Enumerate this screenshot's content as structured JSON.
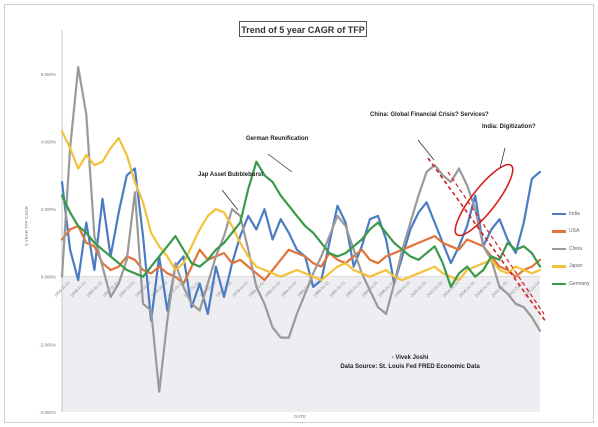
{
  "chart_data": {
    "type": "line",
    "title": "Trend of 5 year CAGR of TFP",
    "ylabel": "5 YEAR TFP CAGR",
    "xlabel": "DATE",
    "ylim": [
      -4,
      7
    ],
    "yticks": [
      "6.000%",
      "4.000%",
      "2.000%",
      "0.000%",
      "-2.000%",
      "-4.000%"
    ],
    "ytick_values": [
      6,
      4,
      2,
      0,
      -2,
      -4
    ],
    "x": [
      "1955-01-01",
      "1956-01-01",
      "1957-01-01",
      "1958-01-01",
      "1959-01-01",
      "1960-01-01",
      "1961-01-01",
      "1962-01-01",
      "1963-01-01",
      "1964-01-01",
      "1965-01-01",
      "1966-01-01",
      "1967-01-01",
      "1968-01-01",
      "1969-01-01",
      "1970-01-01",
      "1971-01-01",
      "1972-01-01",
      "1973-01-01",
      "1974-01-01",
      "1975-01-01",
      "1976-01-01",
      "1977-01-01",
      "1978-01-01",
      "1979-01-01",
      "1980-01-01",
      "1981-01-01",
      "1982-01-01",
      "1983-01-01",
      "1984-01-01",
      "1985-01-01",
      "1986-01-01",
      "1987-01-01",
      "1988-01-01",
      "1989-01-01",
      "1990-01-01",
      "1991-01-01",
      "1992-01-01",
      "1993-01-01",
      "1994-01-01",
      "1995-01-01",
      "1996-01-01",
      "1997-01-01",
      "1998-01-01",
      "1999-01-01",
      "2000-01-01",
      "2001-01-01",
      "2002-01-01",
      "2003-01-01",
      "2004-01-01",
      "2005-01-01",
      "2006-01-01",
      "2007-01-01",
      "2008-01-01",
      "2009-01-01",
      "2010-01-01",
      "2011-01-01",
      "2012-01-01",
      "2013-01-01",
      "2014-01-01"
    ],
    "xtick_labels": [
      "1956-01-01",
      "1958-01-01",
      "1960-01-01",
      "1962-01-01",
      "1964-01-01",
      "1966-01-01",
      "1968-01-01",
      "1970-01-01",
      "1972-01-01",
      "1974-01-01",
      "1976-01-01",
      "1978-01-01",
      "1980-01-01",
      "1982-01-01",
      "1984-01-01",
      "1986-01-01",
      "1988-01-01",
      "1990-01-01",
      "1992-01-01",
      "1994-01-01",
      "1996-01-01",
      "1998-01-01",
      "2000-01-01",
      "2002-01-01",
      "2004-01-01",
      "2006-01-01",
      "2008-01-01",
      "2010-01-01",
      "2012-01-01",
      "2014-01-01"
    ],
    "series": [
      {
        "name": "India",
        "color": "#4a7cc4",
        "values": [
          2.8,
          0.8,
          -0.1,
          1.6,
          0.2,
          2.3,
          0.6,
          1.9,
          3.0,
          3.2,
          1.2,
          -1.3,
          0.6,
          -1.0,
          0.3,
          0.6,
          -0.9,
          -0.2,
          -1.1,
          0.3,
          -0.6,
          0.4,
          1.2,
          1.8,
          1.4,
          2.0,
          1.1,
          1.7,
          1.3,
          0.8,
          0.6,
          -0.3,
          -0.1,
          1.0,
          2.1,
          1.6,
          0.3,
          0.9,
          1.7,
          1.8,
          1.1,
          -0.2,
          0.6,
          1.4,
          1.9,
          2.2,
          1.6,
          1.0,
          0.4,
          0.9,
          1.5,
          2.4,
          0.9,
          1.4,
          1.7,
          1.1,
          0.7,
          1.6,
          2.9,
          3.1
        ]
      },
      {
        "name": "USA",
        "color": "#e2743a",
        "values": [
          1.1,
          1.4,
          1.5,
          1.0,
          0.9,
          0.4,
          0.2,
          0.3,
          0.6,
          0.5,
          0.2,
          0.1,
          0.3,
          0.1,
          0.0,
          -0.2,
          0.3,
          0.8,
          0.5,
          0.6,
          0.7,
          0.4,
          0.5,
          0.3,
          0.1,
          -0.1,
          0.2,
          0.5,
          0.8,
          0.7,
          0.6,
          0.4,
          0.3,
          0.7,
          0.5,
          0.4,
          0.6,
          0.8,
          0.5,
          0.4,
          0.6,
          0.7,
          0.8,
          0.9,
          1.0,
          1.1,
          1.2,
          1.0,
          0.9,
          0.8,
          1.1,
          1.0,
          0.9,
          0.6,
          0.3,
          0.2,
          0.0,
          0.2,
          0.3,
          0.5
        ]
      },
      {
        "name": "China",
        "color": "#9a9a9a",
        "values": [
          0.0,
          3.8,
          6.2,
          4.8,
          1.2,
          0.3,
          -0.6,
          -0.2,
          0.5,
          2.5,
          -0.8,
          -1.0,
          -3.4,
          -1.3,
          0.4,
          -0.3,
          -0.8,
          -1.0,
          -0.2,
          0.6,
          1.2,
          2.0,
          1.8,
          0.8,
          -0.3,
          -0.8,
          -1.5,
          -1.8,
          -1.8,
          -1.1,
          -0.5,
          0.1,
          0.6,
          1.2,
          1.8,
          1.5,
          0.8,
          0.1,
          -0.4,
          -0.9,
          -1.1,
          -0.2,
          0.8,
          1.6,
          2.4,
          3.1,
          3.3,
          3.0,
          2.8,
          3.2,
          2.7,
          2.0,
          0.9,
          0.5,
          -0.3,
          -0.5,
          -0.8,
          -0.9,
          -1.2,
          -1.6
        ]
      },
      {
        "name": "Japan",
        "color": "#f2c23b",
        "values": [
          4.3,
          3.8,
          3.2,
          3.6,
          3.3,
          3.4,
          3.8,
          4.1,
          3.6,
          2.8,
          2.2,
          1.3,
          0.9,
          0.6,
          0.2,
          0.4,
          0.9,
          1.4,
          1.8,
          2.0,
          1.9,
          1.5,
          1.0,
          0.6,
          0.3,
          0.2,
          0.1,
          0.0,
          0.1,
          0.2,
          0.1,
          0.0,
          -0.1,
          0.1,
          0.3,
          0.4,
          0.2,
          0.1,
          0.0,
          0.1,
          0.2,
          0.0,
          -0.1,
          0.0,
          0.1,
          0.2,
          0.3,
          0.1,
          0.0,
          -0.1,
          0.2,
          0.3,
          0.4,
          0.5,
          0.2,
          0.1,
          0.3,
          0.2,
          0.1,
          0.2
        ]
      },
      {
        "name": "Germany",
        "color": "#3a9a4a",
        "values": [
          2.4,
          1.9,
          1.5,
          1.3,
          1.0,
          0.8,
          0.6,
          0.4,
          0.2,
          0.1,
          0.0,
          0.3,
          0.6,
          0.9,
          1.2,
          0.8,
          0.4,
          0.3,
          0.5,
          0.8,
          1.0,
          1.3,
          1.6,
          2.6,
          3.4,
          3.0,
          2.8,
          2.4,
          2.1,
          1.8,
          1.5,
          1.3,
          1.0,
          0.7,
          0.6,
          0.7,
          0.9,
          1.1,
          1.4,
          1.6,
          1.3,
          1.0,
          0.8,
          0.6,
          0.5,
          0.7,
          0.9,
          0.4,
          -0.3,
          0.1,
          0.3,
          0.0,
          0.2,
          0.6,
          0.5,
          1.0,
          0.8,
          0.9,
          0.7,
          0.3
        ]
      }
    ],
    "legend_position": "right",
    "annotations": [
      {
        "text": "Jap Asset Bubbleburst"
      },
      {
        "text": "German Reunification"
      },
      {
        "text": "China: Global Financial Crisis? Services?"
      },
      {
        "text": "India: Digitization?"
      },
      {
        "text": "- Vivek Joshi"
      },
      {
        "text": "Data Source: St. Louis Fed FRED Economic Data"
      }
    ],
    "shapes": [
      {
        "kind": "dashed-line",
        "color": "#d32020"
      },
      {
        "kind": "ellipse",
        "color": "#d32020"
      }
    ]
  }
}
